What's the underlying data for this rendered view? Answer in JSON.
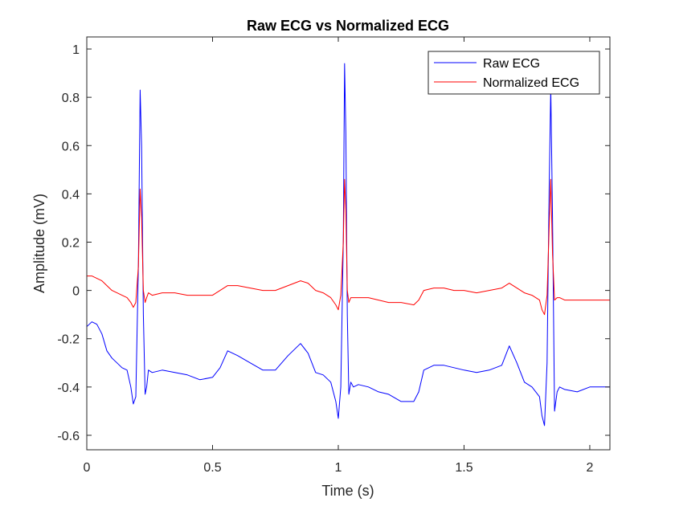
{
  "chart_data": {
    "type": "line",
    "title": "Raw ECG vs Normalized ECG",
    "xlabel": "Time (s)",
    "ylabel": "Amplitude (mV)",
    "xlim": [
      0,
      2.08
    ],
    "ylim": [
      -0.66,
      1.05
    ],
    "xticks": [
      0,
      0.5,
      1,
      1.5,
      2
    ],
    "xtick_labels": [
      "0",
      "0.5",
      "1",
      "1.5",
      "2"
    ],
    "yticks": [
      -0.6,
      -0.4,
      -0.2,
      0,
      0.2,
      0.4,
      0.6,
      0.8,
      1
    ],
    "ytick_labels": [
      "-0.6",
      "-0.4",
      "-0.2",
      "0",
      "0.2",
      "0.4",
      "0.6",
      "0.8",
      "1"
    ],
    "grid": false,
    "legend_position": "top-right",
    "series": [
      {
        "name": "Raw ECG",
        "color": "#0000ff",
        "x": [
          0.0,
          0.02,
          0.04,
          0.06,
          0.08,
          0.1,
          0.12,
          0.14,
          0.16,
          0.175,
          0.185,
          0.195,
          0.205,
          0.212,
          0.218,
          0.225,
          0.232,
          0.238,
          0.245,
          0.26,
          0.3,
          0.35,
          0.4,
          0.45,
          0.5,
          0.53,
          0.56,
          0.6,
          0.65,
          0.7,
          0.75,
          0.8,
          0.85,
          0.88,
          0.91,
          0.94,
          0.97,
          0.99,
          1.0,
          1.01,
          1.02,
          1.025,
          1.03,
          1.036,
          1.042,
          1.05,
          1.06,
          1.08,
          1.12,
          1.16,
          1.2,
          1.25,
          1.3,
          1.32,
          1.34,
          1.38,
          1.42,
          1.46,
          1.5,
          1.55,
          1.6,
          1.65,
          1.68,
          1.71,
          1.74,
          1.77,
          1.8,
          1.81,
          1.82,
          1.83,
          1.838,
          1.845,
          1.852,
          1.86,
          1.87,
          1.88,
          1.9,
          1.95,
          2.0,
          2.04,
          2.08
        ],
        "y": [
          -0.15,
          -0.13,
          -0.14,
          -0.18,
          -0.25,
          -0.28,
          -0.3,
          -0.32,
          -0.33,
          -0.4,
          -0.47,
          -0.44,
          0.1,
          0.83,
          0.6,
          -0.1,
          -0.43,
          -0.4,
          -0.33,
          -0.34,
          -0.33,
          -0.34,
          -0.35,
          -0.37,
          -0.36,
          -0.32,
          -0.25,
          -0.27,
          -0.3,
          -0.33,
          -0.33,
          -0.27,
          -0.22,
          -0.26,
          -0.34,
          -0.35,
          -0.38,
          -0.46,
          -0.53,
          -0.4,
          0.2,
          0.94,
          0.65,
          -0.1,
          -0.43,
          -0.38,
          -0.4,
          -0.39,
          -0.4,
          -0.42,
          -0.43,
          -0.46,
          -0.46,
          -0.42,
          -0.33,
          -0.31,
          -0.31,
          -0.32,
          -0.33,
          -0.34,
          -0.33,
          -0.31,
          -0.23,
          -0.3,
          -0.38,
          -0.4,
          -0.44,
          -0.52,
          -0.56,
          -0.3,
          0.4,
          0.84,
          0.3,
          -0.5,
          -0.42,
          -0.4,
          -0.41,
          -0.42,
          -0.4,
          -0.4,
          -0.4
        ]
      },
      {
        "name": "Normalized ECG",
        "color": "#ff0000",
        "x": [
          0.0,
          0.02,
          0.04,
          0.06,
          0.08,
          0.1,
          0.12,
          0.14,
          0.16,
          0.175,
          0.185,
          0.195,
          0.205,
          0.212,
          0.218,
          0.225,
          0.232,
          0.238,
          0.245,
          0.26,
          0.3,
          0.35,
          0.4,
          0.45,
          0.5,
          0.53,
          0.56,
          0.6,
          0.65,
          0.7,
          0.75,
          0.8,
          0.85,
          0.88,
          0.91,
          0.94,
          0.97,
          0.99,
          1.0,
          1.01,
          1.02,
          1.025,
          1.03,
          1.036,
          1.042,
          1.05,
          1.06,
          1.08,
          1.12,
          1.16,
          1.2,
          1.25,
          1.3,
          1.32,
          1.34,
          1.38,
          1.42,
          1.46,
          1.5,
          1.55,
          1.6,
          1.65,
          1.68,
          1.71,
          1.74,
          1.77,
          1.8,
          1.81,
          1.82,
          1.83,
          1.838,
          1.845,
          1.852,
          1.86,
          1.87,
          1.88,
          1.9,
          1.95,
          2.0,
          2.04,
          2.08
        ],
        "y": [
          0.06,
          0.06,
          0.05,
          0.04,
          0.02,
          0.0,
          -0.01,
          -0.02,
          -0.03,
          -0.05,
          -0.07,
          -0.05,
          0.1,
          0.42,
          0.3,
          0.0,
          -0.05,
          -0.03,
          -0.01,
          -0.02,
          -0.01,
          -0.01,
          -0.02,
          -0.02,
          -0.02,
          0.0,
          0.02,
          0.02,
          0.01,
          0.0,
          0.0,
          0.02,
          0.04,
          0.03,
          0.0,
          -0.01,
          -0.03,
          -0.06,
          -0.08,
          -0.02,
          0.2,
          0.46,
          0.33,
          0.0,
          -0.05,
          -0.03,
          -0.03,
          -0.03,
          -0.03,
          -0.04,
          -0.05,
          -0.05,
          -0.06,
          -0.04,
          0.0,
          0.01,
          0.01,
          0.0,
          0.0,
          -0.01,
          0.0,
          0.01,
          0.03,
          0.01,
          -0.01,
          -0.02,
          -0.04,
          -0.08,
          -0.1,
          -0.02,
          0.25,
          0.46,
          0.15,
          -0.04,
          -0.03,
          -0.03,
          -0.04,
          -0.04,
          -0.04,
          -0.04,
          -0.04
        ]
      }
    ]
  }
}
